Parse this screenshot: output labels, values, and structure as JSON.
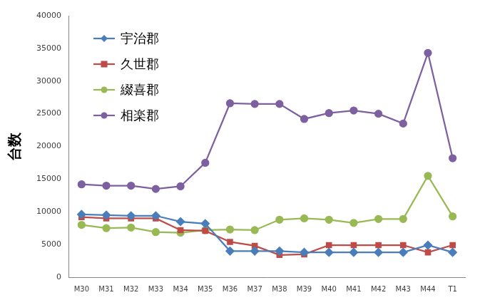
{
  "chart_data": {
    "type": "line",
    "y_label": "台数",
    "categories": [
      "M30",
      "M31",
      "M32",
      "M33",
      "M34",
      "M35",
      "M36",
      "M37",
      "M38",
      "M39",
      "M40",
      "M41",
      "M42",
      "M43",
      "M44",
      "T1"
    ],
    "series": [
      {
        "name": "宇治郡",
        "color": "#4a7ebb",
        "marker": "diamond",
        "values": [
          9600,
          9500,
          9400,
          9400,
          8500,
          8200,
          4000,
          4000,
          4000,
          3800,
          3800,
          3800,
          3800,
          3800,
          4900,
          3800
        ]
      },
      {
        "name": "久世郡",
        "color": "#be4b48",
        "marker": "square",
        "values": [
          9200,
          9000,
          9000,
          9000,
          7200,
          7100,
          5400,
          4800,
          3400,
          3500,
          4900,
          4900,
          4900,
          4900,
          3800,
          4900
        ]
      },
      {
        "name": "綴喜郡",
        "color": "#98b954",
        "marker": "circle",
        "values": [
          8000,
          7500,
          7600,
          6900,
          6800,
          7200,
          7300,
          7200,
          8800,
          9000,
          8800,
          8300,
          8900,
          8900,
          15500,
          9300
        ]
      },
      {
        "name": "相楽郡",
        "color": "#7d60a0",
        "marker": "circle",
        "values": [
          14200,
          14000,
          14000,
          13500,
          13900,
          17500,
          26600,
          26500,
          26500,
          24200,
          25100,
          25500,
          25000,
          23500,
          34300,
          18200
        ]
      }
    ],
    "ylim": [
      0,
      40000
    ],
    "yticks": [
      0,
      5000,
      10000,
      15000,
      20000,
      25000,
      30000,
      35000,
      40000
    ],
    "grid": false,
    "legend": "upper left"
  }
}
